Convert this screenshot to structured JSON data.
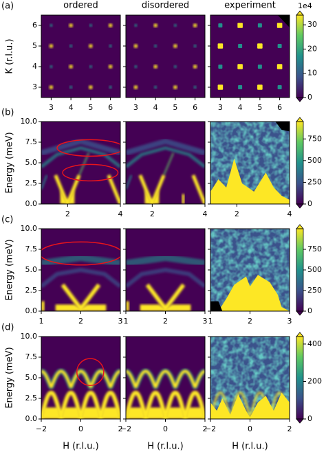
{
  "chart_data": [
    {
      "type": "heatmap",
      "label": "(a)",
      "columns": [
        "ordered",
        "disordered",
        "experiment"
      ],
      "ylabel": "K (r.l.u.)",
      "xlim": [
        2.5,
        6.5
      ],
      "xticks": [
        3,
        4,
        5,
        6
      ],
      "ylim": [
        2.5,
        6.5
      ],
      "yticks": [
        3,
        4,
        5,
        6
      ],
      "colorbar": {
        "lim": [
          0,
          34
        ],
        "ticks": [
          0,
          10,
          20,
          30
        ],
        "scale_label": "1e4"
      }
    },
    {
      "type": "heatmap",
      "label": "(b)",
      "ylabel": "Energy (meV)",
      "xlim": [
        1,
        4
      ],
      "xticks": [
        2,
        4
      ],
      "ylim": [
        0,
        10
      ],
      "yticks": [
        {
          "value": 0,
          "label": "0.0"
        },
        {
          "value": 2.5,
          "label": "2.5"
        },
        {
          "value": 5,
          "label": "5.0"
        },
        {
          "value": 7.5,
          "label": "7.5"
        },
        {
          "value": 10,
          "label": "10.0"
        }
      ],
      "colorbar": {
        "lim": [
          0,
          950
        ],
        "ticks": [
          0,
          250,
          500,
          750
        ]
      }
    },
    {
      "type": "heatmap",
      "label": "(c)",
      "ylabel": "Energy (meV)",
      "xlim": [
        1,
        3
      ],
      "xticks": [
        1,
        2,
        3
      ],
      "ylim": [
        0,
        10
      ],
      "yticks": [
        {
          "value": 0,
          "label": "0.0"
        },
        {
          "value": 2.5,
          "label": "2.5"
        },
        {
          "value": 5,
          "label": "5.0"
        },
        {
          "value": 7.5,
          "label": "7.5"
        },
        {
          "value": 10,
          "label": "10.0"
        }
      ],
      "colorbar": {
        "lim": [
          0,
          1000
        ],
        "ticks": [
          0,
          250,
          500,
          750
        ]
      }
    },
    {
      "type": "heatmap",
      "label": "(d)",
      "ylabel": "Energy (meV)",
      "xlabel": "H (r.l.u.)",
      "xlim": [
        -2,
        2
      ],
      "xticks": [
        {
          "value": -2,
          "label": "−2"
        },
        0,
        2
      ],
      "ylim": [
        0,
        10
      ],
      "yticks": [
        {
          "value": 0,
          "label": "0.0"
        },
        {
          "value": 2.5,
          "label": "2.5"
        },
        {
          "value": 5,
          "label": "5.0"
        },
        {
          "value": 7.5,
          "label": "7.5"
        },
        {
          "value": 10,
          "label": "10.0"
        }
      ],
      "colorbar": {
        "lim": [
          0,
          440
        ],
        "ticks": [
          0,
          200,
          400
        ]
      }
    }
  ]
}
